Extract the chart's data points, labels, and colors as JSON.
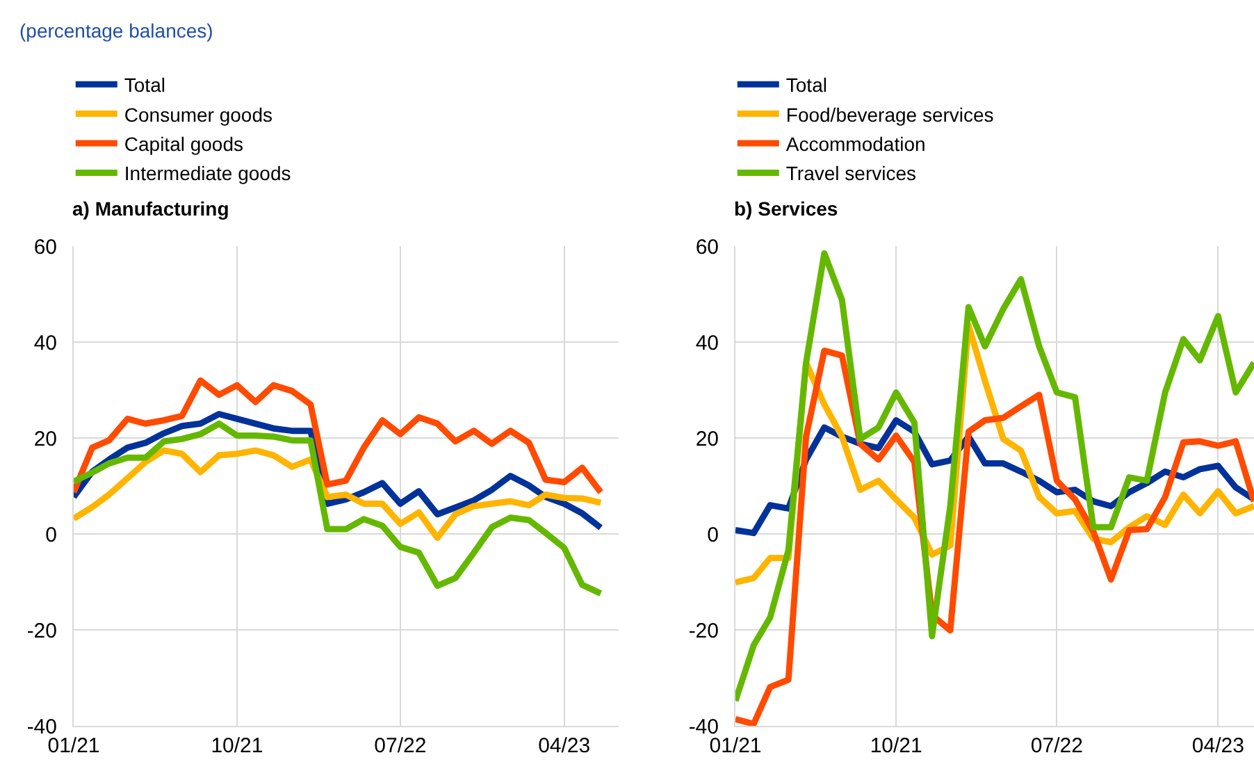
{
  "chart_data": [
    {
      "type": "line",
      "title": "a) Manufacturing",
      "annotations": [
        "(percentage balances)"
      ],
      "x": [
        "2021-01",
        "2021-02",
        "2021-03",
        "2021-04",
        "2021-05",
        "2021-06",
        "2021-07",
        "2021-08",
        "2021-09",
        "2021-10",
        "2021-11",
        "2021-12",
        "2022-01",
        "2022-02",
        "2022-03",
        "2022-04",
        "2022-05",
        "2022-06",
        "2022-07",
        "2022-08",
        "2022-09",
        "2022-10",
        "2022-11",
        "2022-12",
        "2023-01",
        "2023-02",
        "2023-03",
        "2023-04",
        "2023-05",
        "2023-06"
      ],
      "series": [
        {
          "name": "Total",
          "color": "#003299",
          "values": [
            7.7,
            13,
            15.5,
            18,
            19,
            21,
            22.5,
            23,
            25,
            24,
            23,
            22,
            21.5,
            21.5,
            6.3,
            7.2,
            8.7,
            10.6,
            6.3,
            8.9,
            4.1,
            5.5,
            7,
            9.2,
            12.1,
            10.1,
            7.7,
            6.3,
            4.3,
            1.3
          ]
        },
        {
          "name": "Consumer goods",
          "color": "#ffb400",
          "values": [
            3.2,
            5.6,
            8.2,
            11.6,
            15,
            17.4,
            16.7,
            12.9,
            16.4,
            16.7,
            17.4,
            16.4,
            14,
            15.5,
            7.7,
            8.2,
            6.3,
            6.3,
            2.1,
            4.5,
            -0.8,
            4.1,
            5.8,
            6.3,
            6.8,
            6,
            8.2,
            7.5,
            7.4,
            6.5
          ]
        },
        {
          "name": "Capital goods",
          "color": "#ff4b00",
          "values": [
            8.7,
            18,
            19.5,
            24,
            23,
            23.7,
            24.6,
            32,
            29,
            31,
            27.5,
            31,
            29.8,
            27,
            10.3,
            11.1,
            18,
            23.7,
            20.8,
            24.3,
            23,
            19.3,
            21.5,
            18.8,
            21.5,
            19,
            11.3,
            10.8,
            13.8,
            8.7
          ]
        },
        {
          "name": "Intermediate goods",
          "color": "#65b800",
          "values": [
            10.9,
            12.8,
            14.7,
            15.9,
            15.9,
            19.3,
            19.8,
            20.8,
            23,
            20.5,
            20.5,
            20.3,
            19.5,
            19.5,
            1,
            1,
            3.1,
            1.7,
            -2.7,
            -3.9,
            -10.8,
            -9.2,
            -3.9,
            1.4,
            3.4,
            2.9,
            0.2,
            -2.9,
            -10.6,
            -12.4
          ]
        }
      ],
      "xlim": [
        "2021-01",
        "2023-07"
      ],
      "xticks": [
        {
          "value": "2021-01",
          "label": "01/21"
        },
        {
          "value": "2021-10",
          "label": "10/21"
        },
        {
          "value": "2022-07",
          "label": "07/22"
        },
        {
          "value": "2023-04",
          "label": "04/23"
        }
      ],
      "ylim": [
        -40,
        60
      ],
      "yticks": [
        -40,
        -20,
        0,
        20,
        40,
        60
      ],
      "grid": true,
      "legend": "top left"
    },
    {
      "type": "line",
      "title": "b) Services",
      "x": [
        "2021-01",
        "2021-02",
        "2021-03",
        "2021-04",
        "2021-05",
        "2021-06",
        "2021-07",
        "2021-08",
        "2021-09",
        "2021-10",
        "2021-11",
        "2021-12",
        "2022-01",
        "2022-02",
        "2022-03",
        "2022-04",
        "2022-05",
        "2022-06",
        "2022-07",
        "2022-08",
        "2022-09",
        "2022-10",
        "2022-11",
        "2022-12",
        "2023-01",
        "2023-02",
        "2023-03",
        "2023-04",
        "2023-05",
        "2023-06"
      ],
      "series": [
        {
          "name": "Total",
          "color": "#003299",
          "values": [
            0.8,
            0.2,
            6,
            5.3,
            15.5,
            22.2,
            20.3,
            18.8,
            17.9,
            23.7,
            21.3,
            14.5,
            15.3,
            20.3,
            14.7,
            14.7,
            13,
            11.1,
            8.7,
            9.2,
            6.8,
            5.8,
            8.7,
            10.6,
            13,
            11.8,
            13.5,
            14.2,
            9.7,
            7.2
          ]
        },
        {
          "name": "Food/beverage services",
          "color": "#ffb400",
          "values": [
            -10.1,
            -9.2,
            -5,
            -5,
            35.7,
            27,
            20.3,
            9.2,
            11.1,
            7.2,
            3.4,
            -4.3,
            -2.4,
            43.5,
            31.9,
            19.8,
            17.4,
            7.7,
            4.3,
            4.8,
            -1,
            -1.7,
            1.4,
            3.7,
            1.9,
            8.2,
            4.3,
            8.9,
            4.3,
            5.8
          ]
        },
        {
          "name": "Accommodation",
          "color": "#ff4b00",
          "values": [
            -38.6,
            -39.6,
            -31.9,
            -30.4,
            20.3,
            38.2,
            37.2,
            18.8,
            15.5,
            20.5,
            15,
            -16.9,
            -20.1,
            21.3,
            23.7,
            24.2,
            26.6,
            29,
            11.1,
            7.2,
            0.5,
            -9.5,
            0.8,
            1,
            7.7,
            19.1,
            19.3,
            18.4,
            19.3,
            6.8
          ]
        },
        {
          "name": "Travel services",
          "color": "#65b800",
          "values": [
            -34.8,
            -23.2,
            -17.4,
            -3.4,
            35.7,
            58.5,
            48.8,
            19.8,
            22.2,
            29.5,
            23.2,
            -21.3,
            5.8,
            47.3,
            39.1,
            46.9,
            53.1,
            39.1,
            29.5,
            28.5,
            1.4,
            1.4,
            11.8,
            11.1,
            29.5,
            40.6,
            36.2,
            45.4,
            29.5,
            35.7
          ]
        }
      ],
      "xlim": [
        "2021-01",
        "2023-06"
      ],
      "xticks": [
        {
          "value": "2021-01",
          "label": "01/21"
        },
        {
          "value": "2021-10",
          "label": "10/21"
        },
        {
          "value": "2022-07",
          "label": "07/22"
        },
        {
          "value": "2023-04",
          "label": "04/23"
        }
      ],
      "ylim": [
        -40,
        60
      ],
      "yticks": [
        -40,
        -20,
        0,
        20,
        40,
        60
      ],
      "grid": true,
      "legend": "top left"
    }
  ]
}
